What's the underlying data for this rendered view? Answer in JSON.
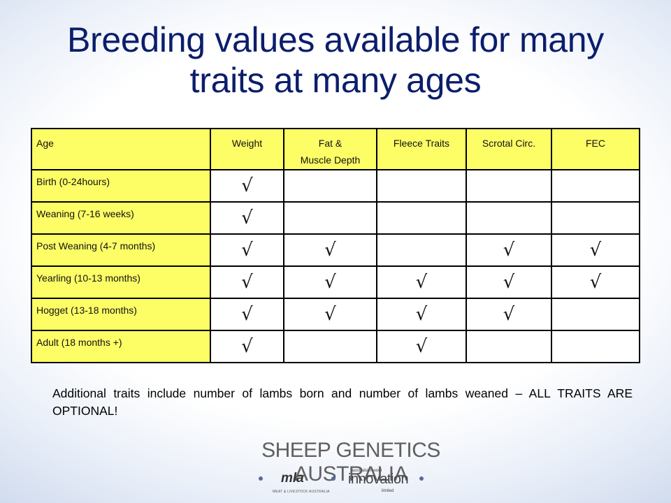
{
  "title": {
    "line1": "Breeding values available for many",
    "line2": "traits at many ages"
  },
  "table": {
    "headers": [
      "Age",
      "Weight",
      "Fat &",
      "Muscle Depth",
      "Fleece Traits",
      "Scrotal Circ.",
      "FEC"
    ],
    "check": "√",
    "rows": [
      {
        "age": "Birth (0-24hours)",
        "marks": [
          1,
          0,
          0,
          0,
          0
        ]
      },
      {
        "age": "Weaning (7-16 weeks)",
        "marks": [
          1,
          0,
          0,
          0,
          0
        ]
      },
      {
        "age": "Post Weaning (4-7 months)",
        "marks": [
          1,
          1,
          0,
          1,
          1
        ]
      },
      {
        "age": "Yearling (10-13 months)",
        "marks": [
          1,
          1,
          1,
          1,
          1
        ]
      },
      {
        "age": "Hogget (13-18 months)",
        "marks": [
          1,
          1,
          1,
          1,
          0
        ]
      },
      {
        "age": "Adult (18 months +)",
        "marks": [
          1,
          0,
          1,
          0,
          0
        ]
      }
    ]
  },
  "note": "Additional traits include number of lambs born and number of lambs weaned – ALL TRAITS ARE OPTIONAL!",
  "footer": {
    "brand": "SHEEP GENETICS AUSTRALIA",
    "mla": "mla",
    "mla_sub": "MEAT & LIVESTOCK AUSTRALIA",
    "awi_top": "australian wool",
    "awi": "innovation",
    "awi_sub": "limited"
  }
}
